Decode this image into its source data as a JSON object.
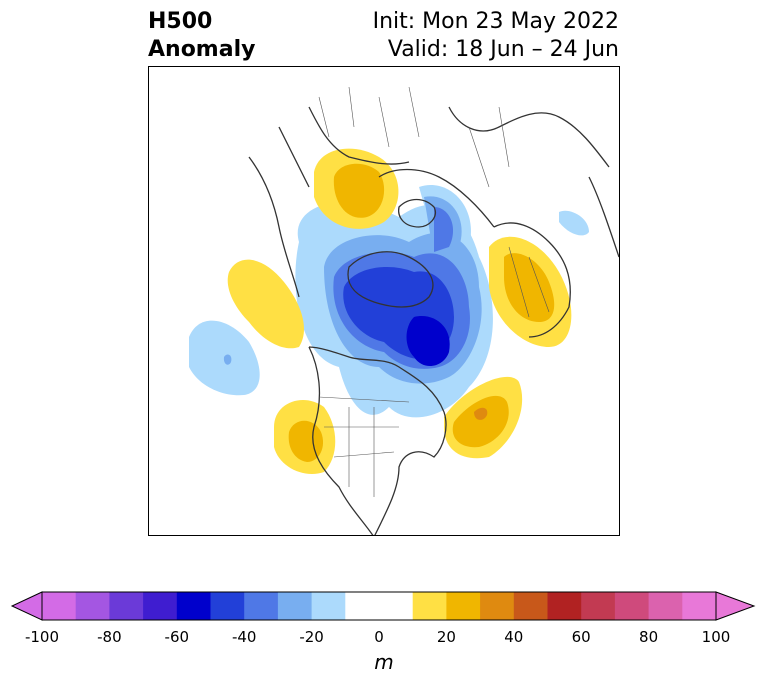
{
  "title": {
    "left_line1": "H500",
    "left_line2": "Anomaly",
    "right_line1": "Init: Mon 23 May 2022",
    "right_line2": "Valid: 18 Jun – 24 Jun"
  },
  "colorbar": {
    "unit": "m",
    "ticks": [
      "-100",
      "-80",
      "-60",
      "-40",
      "-20",
      "0",
      "20",
      "40",
      "60",
      "80",
      "100"
    ],
    "colors": [
      "#d36be6",
      "#a456e2",
      "#6b3ad8",
      "#3f1dd0",
      "#0000cc",
      "#2240d8",
      "#4f78e6",
      "#78aef0",
      "#acdafc",
      "#ffffff",
      "#ffffff",
      "#ffe044",
      "#f0b600",
      "#df8a10",
      "#c8581a",
      "#b12222",
      "#c23a52",
      "#cf4a7c",
      "#db62ae",
      "#e878d8"
    ]
  },
  "map": {
    "projection": "north-polar-stereographic",
    "coastline_color": "#333333"
  }
}
